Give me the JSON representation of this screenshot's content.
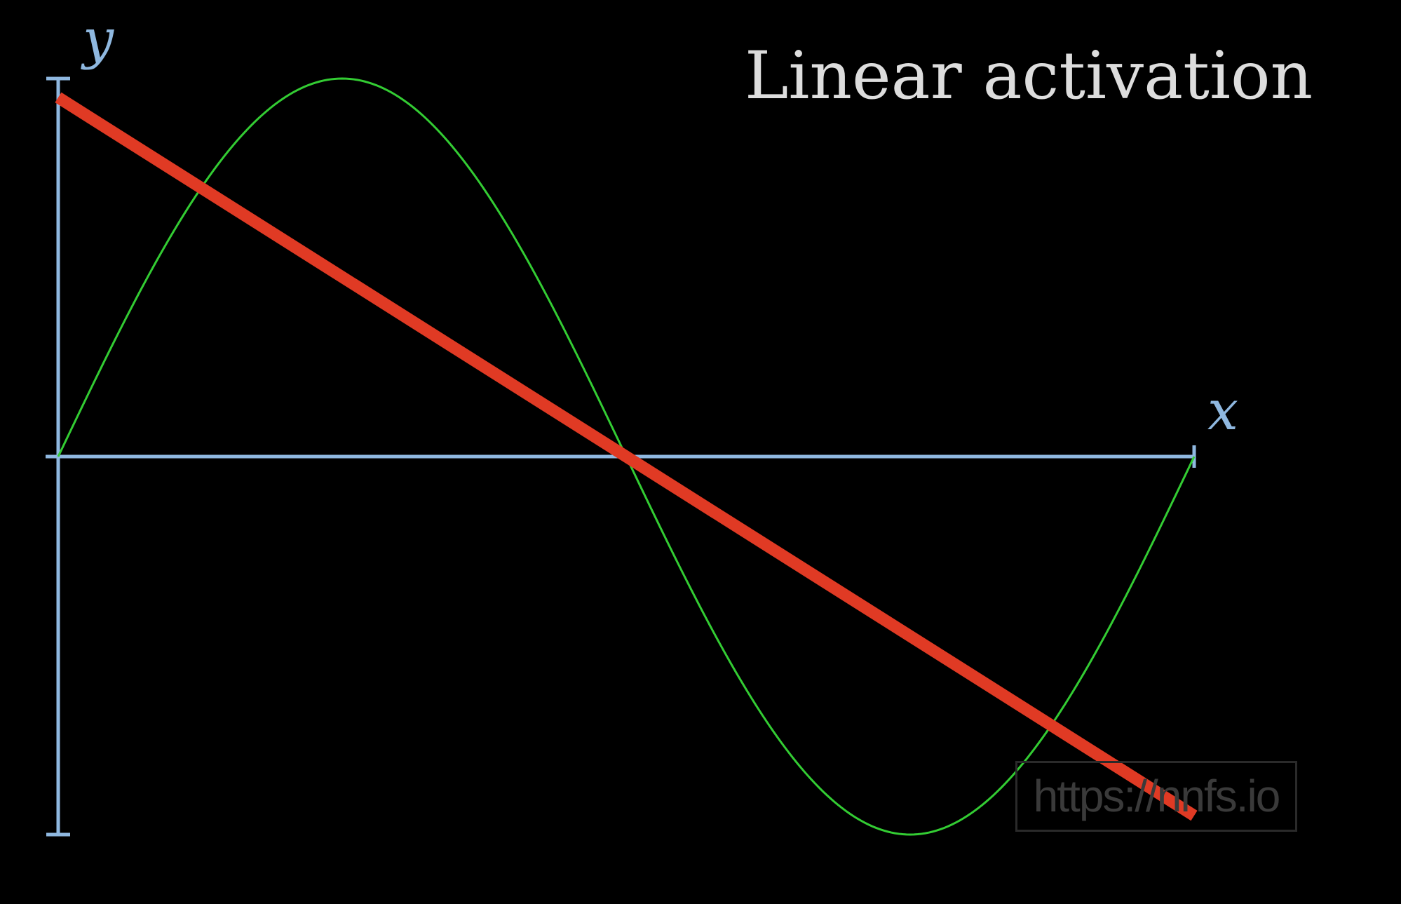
{
  "chart_data": {
    "type": "line",
    "title": "Linear activation",
    "xlabel": "x",
    "ylabel": "y",
    "xlim": [
      0,
      6.283
    ],
    "ylim": [
      -1,
      1
    ],
    "grid": false,
    "series": [
      {
        "function": "sin(x)",
        "color": "#33cc33",
        "x": [
          0,
          0.785,
          1.571,
          2.356,
          3.142,
          3.927,
          4.712,
          5.498,
          6.283
        ],
        "y": [
          0,
          0.707,
          1,
          0.707,
          0,
          -0.707,
          -1,
          -0.707,
          0
        ]
      },
      {
        "function": "linear",
        "color": "#e03a24",
        "x": [
          0,
          6.283
        ],
        "y": [
          0.95,
          -0.95
        ]
      }
    ],
    "colors": {
      "background": "#000000",
      "axes": "#8fb8e0",
      "title": "#dddddd"
    }
  },
  "watermark": {
    "text": "https://nnfs.io"
  }
}
